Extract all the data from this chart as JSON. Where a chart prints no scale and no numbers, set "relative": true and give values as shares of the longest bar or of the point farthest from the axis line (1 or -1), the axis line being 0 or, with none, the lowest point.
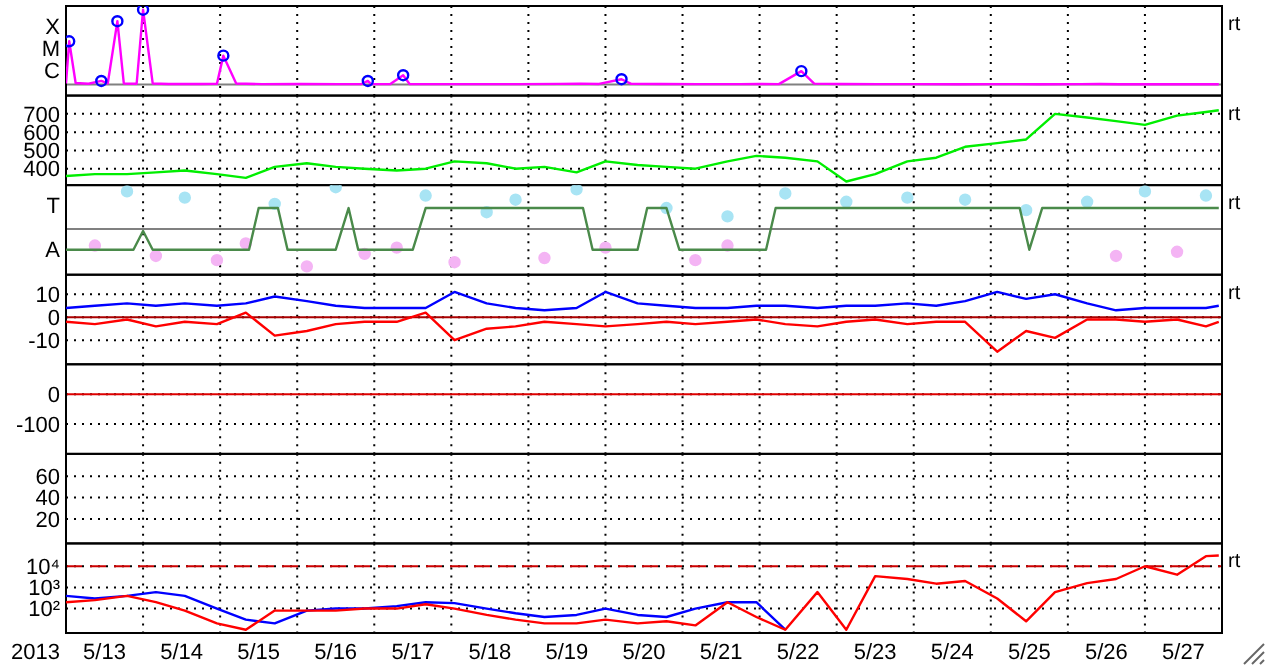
{
  "chart_data": [
    {
      "type": "line",
      "relative": true,
      "grid": true,
      "tick_labels": "y",
      "annotations": [
        "rt",
        "X",
        "M",
        "C"
      ],
      "xlim": [
        "2013-05-13",
        "2013-05-28"
      ],
      "xticks": [
        {
          "value": "2013-05-14T00:00",
          "label": null
        },
        {
          "value": "2013-05-15T00:00",
          "label": null
        },
        {
          "value": "2013-05-16T00:00",
          "label": null
        },
        {
          "value": "2013-05-17T00:00",
          "label": null
        },
        {
          "value": "2013-05-18T00:00",
          "label": null
        },
        {
          "value": "2013-05-19T00:00",
          "label": null
        },
        {
          "value": "2013-05-20T00:00",
          "label": null
        },
        {
          "value": "2013-05-21T00:00",
          "label": null
        },
        {
          "value": "2013-05-22T00:00",
          "label": null
        },
        {
          "value": "2013-05-23T00:00",
          "label": null
        },
        {
          "value": "2013-05-24T00:00",
          "label": null
        },
        {
          "value": "2013-05-25T00:00",
          "label": null
        },
        {
          "value": "2013-05-26T00:00",
          "label": null
        },
        {
          "value": "2013-05-27T00:00",
          "label": null
        }
      ],
      "series": [
        {
          "color": "#ff00ff",
          "x": [
            "2013-05-13T00:00",
            "2013-05-13T01:00",
            "2013-05-13T03:00",
            "2013-05-13T07:00",
            "2013-05-13T11:00",
            "2013-05-13T13:00",
            "2013-05-13T16:00",
            "2013-05-13T18:00",
            "2013-05-13T22:00",
            "2013-05-14T00:00",
            "2013-05-14T03:00",
            "2013-05-14T08:00",
            "2013-05-14T18:00",
            "2013-05-14T23:00",
            "2013-05-15T01:00",
            "2013-05-15T05:00",
            "2013-05-15T13:00",
            "2013-05-16T01:00",
            "2013-05-16T13:00",
            "2013-05-16T20:00",
            "2013-05-16T22:00",
            "2013-05-16T23:00",
            "2013-05-17T05:00",
            "2013-05-17T09:00",
            "2013-05-17T11:00",
            "2013-05-17T20:00",
            "2013-05-18T09:00",
            "2013-05-18T21:00",
            "2013-05-19T10:00",
            "2013-05-19T16:00",
            "2013-05-19T22:00",
            "2013-05-20T05:00",
            "2013-05-20T08:00",
            "2013-05-20T17:00",
            "2013-05-21T05:00",
            "2013-05-21T18:00",
            "2013-05-22T00:00",
            "2013-05-22T06:00",
            "2013-05-22T13:00",
            "2013-05-22T17:00",
            "2013-05-23T01:00",
            "2013-05-23T13:00",
            "2013-05-24T02:00",
            "2013-05-24T14:00",
            "2013-05-25T03:00",
            "2013-05-25T15:00",
            "2013-05-26T04:00",
            "2013-05-26T10:00",
            "2013-05-26T16:00",
            "2013-05-27T05:00",
            "2013-05-27T17:00",
            "2013-05-27T23:00"
          ],
          "values": [
            0.0123,
            0.577,
            0.0177,
            0.0085,
            0.046,
            0.0123,
            0.846,
            0.0123,
            0.0085,
            1,
            0.0123,
            0.0046,
            0.0046,
            0.0069,
            0.385,
            0.0123,
            0.0038,
            0.0046,
            0.0032,
            0.0046,
            0.046,
            0.0038,
            0.0046,
            0.123,
            0.0058,
            0.0032,
            0.0038,
            0.0032,
            0.0069,
            0.01,
            0.0058,
            0.069,
            0.0069,
            0.0046,
            0.0032,
            0.0038,
            0.0058,
            0.0038,
            0.177,
            0.01,
            0.0046,
            0.0032,
            0.0038,
            0.0026,
            0.0032,
            0.0026,
            0.0032,
            0.0046,
            0.0026,
            0.0022,
            0.0018,
            0.0018
          ]
        },
        {
          "type": "scatter",
          "marker": "circle",
          "color": "#0000ff",
          "x": [
            "2013-05-13T01:00",
            "2013-05-13T11:00",
            "2013-05-13T16:00",
            "2013-05-14T00:00",
            "2013-05-15T01:00",
            "2013-05-16T22:00",
            "2013-05-17T09:00",
            "2013-05-20T05:00",
            "2013-05-22T13:00"
          ],
          "values": [
            0.577,
            0.046,
            0.846,
            1,
            0.385,
            0.046,
            0.123,
            0.069,
            0.177
          ]
        }
      ]
    },
    {
      "type": "line",
      "grid": true,
      "tick_labels": "y",
      "annotations": [
        "rt"
      ],
      "xlim": [
        "2013-05-13",
        "2013-05-28"
      ],
      "xticks": [
        {
          "value": "2013-05-14T00:00",
          "label": null
        },
        {
          "value": "2013-05-15T00:00",
          "label": null
        },
        {
          "value": "2013-05-16T00:00",
          "label": null
        },
        {
          "value": "2013-05-17T00:00",
          "label": null
        },
        {
          "value": "2013-05-18T00:00",
          "label": null
        },
        {
          "value": "2013-05-19T00:00",
          "label": null
        },
        {
          "value": "2013-05-20T00:00",
          "label": null
        },
        {
          "value": "2013-05-21T00:00",
          "label": null
        },
        {
          "value": "2013-05-22T00:00",
          "label": null
        },
        {
          "value": "2013-05-23T00:00",
          "label": null
        },
        {
          "value": "2013-05-24T00:00",
          "label": null
        },
        {
          "value": "2013-05-25T00:00",
          "label": null
        },
        {
          "value": "2013-05-26T00:00",
          "label": null
        },
        {
          "value": "2013-05-27T00:00",
          "label": null
        }
      ],
      "ylim": [
        310,
        800
      ],
      "yticks": [
        400,
        500,
        600,
        700
      ],
      "x": [
        "2013-05-13T00:00",
        "2013-05-13T09:00",
        "2013-05-13T19:00",
        "2013-05-14T04:00",
        "2013-05-14T13:00",
        "2013-05-14T23:00",
        "2013-05-15T08:00",
        "2013-05-15T17:00",
        "2013-05-16T03:00",
        "2013-05-16T12:00",
        "2013-05-16T21:00",
        "2013-05-17T07:00",
        "2013-05-17T16:00",
        "2013-05-18T01:00",
        "2013-05-18T11:00",
        "2013-05-18T20:00",
        "2013-05-19T05:00",
        "2013-05-19T15:00",
        "2013-05-20T00:00",
        "2013-05-20T10:00",
        "2013-05-20T19:00",
        "2013-05-21T04:00",
        "2013-05-21T14:00",
        "2013-05-21T23:00",
        "2013-05-22T08:00",
        "2013-05-22T18:00",
        "2013-05-23T03:00",
        "2013-05-23T12:00",
        "2013-05-23T22:00",
        "2013-05-24T07:00",
        "2013-05-24T16:00",
        "2013-05-25T02:00",
        "2013-05-25T11:00",
        "2013-05-25T20:00",
        "2013-05-26T06:00",
        "2013-05-26T15:00",
        "2013-05-27T00:00",
        "2013-05-27T10:00",
        "2013-05-27T19:00",
        "2013-05-27T23:00"
      ],
      "series": [
        {
          "color": "#00ee00",
          "values": [
            360,
            370,
            370,
            380,
            390,
            370,
            350,
            410,
            430,
            410,
            400,
            390,
            400,
            440,
            430,
            400,
            410,
            380,
            440,
            420,
            410,
            400,
            440,
            470,
            460,
            440,
            330,
            370,
            440,
            460,
            520,
            540,
            560,
            700,
            680,
            660,
            640,
            690,
            710,
            720
          ]
        }
      ]
    },
    {
      "type": "line",
      "relative": true,
      "grid": true,
      "tick_labels": "y",
      "annotations": [
        "rt",
        "T",
        "A"
      ],
      "xlim": [
        "2013-05-13",
        "2013-05-28"
      ],
      "xticks": [
        {
          "value": "2013-05-14T00:00",
          "label": null
        },
        {
          "value": "2013-05-15T00:00",
          "label": null
        },
        {
          "value": "2013-05-16T00:00",
          "label": null
        },
        {
          "value": "2013-05-17T00:00",
          "label": null
        },
        {
          "value": "2013-05-18T00:00",
          "label": null
        },
        {
          "value": "2013-05-19T00:00",
          "label": null
        },
        {
          "value": "2013-05-20T00:00",
          "label": null
        },
        {
          "value": "2013-05-21T00:00",
          "label": null
        },
        {
          "value": "2013-05-22T00:00",
          "label": null
        },
        {
          "value": "2013-05-23T00:00",
          "label": null
        },
        {
          "value": "2013-05-24T00:00",
          "label": null
        },
        {
          "value": "2013-05-25T00:00",
          "label": null
        },
        {
          "value": "2013-05-26T00:00",
          "label": null
        },
        {
          "value": "2013-05-27T00:00",
          "label": null
        }
      ],
      "series": [
        {
          "type": "scatter",
          "color": "#a8e4f4",
          "x": [
            "2013-05-13T19:00",
            "2013-05-14T13:00",
            "2013-05-15T17:00",
            "2013-05-16T12:00",
            "2013-05-17T16:00",
            "2013-05-18T11:00",
            "2013-05-18T20:00",
            "2013-05-19T15:00",
            "2013-05-20T19:00",
            "2013-05-21T14:00",
            "2013-05-22T08:00",
            "2013-05-23T03:00",
            "2013-05-23T22:00",
            "2013-05-24T16:00",
            "2013-05-25T11:00",
            "2013-05-26T06:00",
            "2013-05-27T00:00",
            "2013-05-27T19:00"
          ],
          "values": [
            0.9,
            0.75,
            0.6,
            1.0,
            0.8,
            0.4,
            0.7,
            0.95,
            0.5,
            0.3,
            0.85,
            0.65,
            0.75,
            0.7,
            0.45,
            0.65,
            0.9,
            0.8
          ]
        },
        {
          "type": "scatter",
          "color": "#f4b4f4",
          "x": [
            "2013-05-13T09:00",
            "2013-05-14T04:00",
            "2013-05-14T23:00",
            "2013-05-15T08:00",
            "2013-05-16T03:00",
            "2013-05-16T21:00",
            "2013-05-17T07:00",
            "2013-05-18T01:00",
            "2013-05-19T05:00",
            "2013-05-20T00:00",
            "2013-05-21T04:00",
            "2013-05-21T14:00",
            "2013-05-26T15:00",
            "2013-05-27T10:00"
          ],
          "values": [
            -0.4,
            -0.65,
            -0.75,
            -0.35,
            -0.9,
            -0.6,
            -0.45,
            -0.8,
            -0.7,
            -0.45,
            -0.75,
            -0.4,
            -0.65,
            -0.55
          ]
        },
        {
          "color": "#4a8a4a",
          "x": [
            "2013-05-13T00:00",
            "2013-05-13T21:00",
            "2013-05-14T00:00",
            "2013-05-14T03:00",
            "2013-05-15T09:00",
            "2013-05-15T12:00",
            "2013-05-15T18:00",
            "2013-05-15T21:00",
            "2013-05-16T12:00",
            "2013-05-16T16:00",
            "2013-05-16T19:00",
            "2013-05-17T12:00",
            "2013-05-17T16:00",
            "2013-05-19T17:00",
            "2013-05-19T20:00",
            "2013-05-20T10:00",
            "2013-05-20T13:00",
            "2013-05-20T19:00",
            "2013-05-20T23:00",
            "2013-05-22T02:00",
            "2013-05-22T05:00",
            "2013-05-25T09:00",
            "2013-05-25T12:00",
            "2013-05-25T16:00",
            "2013-05-27T23:00"
          ],
          "values": [
            -0.5,
            -0.5,
            -0.05,
            -0.5,
            -0.5,
            0.5,
            0.5,
            -0.5,
            -0.5,
            0.5,
            -0.5,
            -0.5,
            0.5,
            0.5,
            -0.5,
            -0.5,
            0.5,
            0.5,
            -0.5,
            -0.5,
            0.5,
            0.5,
            -0.5,
            0.5,
            0.5
          ]
        }
      ]
    },
    {
      "type": "line",
      "grid": true,
      "tick_labels": "y",
      "annotations": [
        "rt"
      ],
      "xlim": [
        "2013-05-13",
        "2013-05-28"
      ],
      "xticks": [
        {
          "value": "2013-05-14T00:00",
          "label": null
        },
        {
          "value": "2013-05-15T00:00",
          "label": null
        },
        {
          "value": "2013-05-16T00:00",
          "label": null
        },
        {
          "value": "2013-05-17T00:00",
          "label": null
        },
        {
          "value": "2013-05-18T00:00",
          "label": null
        },
        {
          "value": "2013-05-19T00:00",
          "label": null
        },
        {
          "value": "2013-05-20T00:00",
          "label": null
        },
        {
          "value": "2013-05-21T00:00",
          "label": null
        },
        {
          "value": "2013-05-22T00:00",
          "label": null
        },
        {
          "value": "2013-05-23T00:00",
          "label": null
        },
        {
          "value": "2013-05-24T00:00",
          "label": null
        },
        {
          "value": "2013-05-25T00:00",
          "label": null
        },
        {
          "value": "2013-05-26T00:00",
          "label": null
        },
        {
          "value": "2013-05-27T00:00",
          "label": null
        }
      ],
      "ylim": [
        -20.5,
        18.5
      ],
      "yticks": [
        -10,
        0,
        10
      ],
      "ref_lines": [
        {
          "axis": "y",
          "value": 0,
          "color": "#aa0000"
        }
      ],
      "x": [
        "2013-05-13T00:00",
        "2013-05-13T09:00",
        "2013-05-13T19:00",
        "2013-05-14T04:00",
        "2013-05-14T13:00",
        "2013-05-14T23:00",
        "2013-05-15T08:00",
        "2013-05-15T17:00",
        "2013-05-16T03:00",
        "2013-05-16T12:00",
        "2013-05-16T21:00",
        "2013-05-17T07:00",
        "2013-05-17T16:00",
        "2013-05-18T01:00",
        "2013-05-18T11:00",
        "2013-05-18T20:00",
        "2013-05-19T05:00",
        "2013-05-19T15:00",
        "2013-05-20T00:00",
        "2013-05-20T10:00",
        "2013-05-20T19:00",
        "2013-05-21T04:00",
        "2013-05-21T14:00",
        "2013-05-21T23:00",
        "2013-05-22T08:00",
        "2013-05-22T18:00",
        "2013-05-23T03:00",
        "2013-05-23T12:00",
        "2013-05-23T22:00",
        "2013-05-24T07:00",
        "2013-05-24T16:00",
        "2013-05-25T02:00",
        "2013-05-25T11:00",
        "2013-05-25T20:00",
        "2013-05-26T06:00",
        "2013-05-26T15:00",
        "2013-05-27T00:00",
        "2013-05-27T10:00",
        "2013-05-27T19:00",
        "2013-05-27T23:00"
      ],
      "series": [
        {
          "color": "#ff0000",
          "values": [
            -2,
            -3,
            -1,
            -4,
            -2,
            -3,
            2,
            -8,
            -6,
            -3,
            -2,
            -2,
            2,
            -10,
            -5,
            -4,
            -2,
            -3,
            -4,
            -3,
            -2,
            -3,
            -2,
            -1,
            -3,
            -4,
            -2,
            -1,
            -3,
            -2,
            -2,
            -15,
            -6,
            -9,
            -1,
            -1,
            -2,
            -1,
            -4,
            -2
          ]
        },
        {
          "color": "#0000ff",
          "values": [
            4,
            5,
            6,
            5,
            6,
            5,
            6,
            9,
            7,
            5,
            4,
            4,
            4,
            11,
            6,
            4,
            3,
            4,
            11,
            6,
            5,
            4,
            4,
            5,
            5,
            4,
            5,
            5,
            6,
            5,
            7,
            11,
            8,
            10,
            6,
            3,
            4,
            4,
            4,
            5
          ]
        }
      ]
    },
    {
      "type": "line",
      "grid": true,
      "tick_labels": "y",
      "xlim": [
        "2013-05-13",
        "2013-05-28"
      ],
      "xticks": [
        {
          "value": "2013-05-14T00:00",
          "label": null
        },
        {
          "value": "2013-05-15T00:00",
          "label": null
        },
        {
          "value": "2013-05-16T00:00",
          "label": null
        },
        {
          "value": "2013-05-17T00:00",
          "label": null
        },
        {
          "value": "2013-05-18T00:00",
          "label": null
        },
        {
          "value": "2013-05-19T00:00",
          "label": null
        },
        {
          "value": "2013-05-20T00:00",
          "label": null
        },
        {
          "value": "2013-05-21T00:00",
          "label": null
        },
        {
          "value": "2013-05-22T00:00",
          "label": null
        },
        {
          "value": "2013-05-23T00:00",
          "label": null
        },
        {
          "value": "2013-05-24T00:00",
          "label": null
        },
        {
          "value": "2013-05-25T00:00",
          "label": null
        },
        {
          "value": "2013-05-26T00:00",
          "label": null
        },
        {
          "value": "2013-05-27T00:00",
          "label": null
        }
      ],
      "ylim": [
        -200,
        100
      ],
      "yticks": [
        -100,
        0
      ],
      "ref_lines": [
        {
          "axis": "y",
          "value": 0,
          "color": "#dd0000"
        }
      ]
    },
    {
      "type": "line",
      "grid": true,
      "tick_labels": "y",
      "xlim": [
        "2013-05-13",
        "2013-05-28"
      ],
      "xticks": [
        {
          "value": "2013-05-14T00:00",
          "label": null
        },
        {
          "value": "2013-05-15T00:00",
          "label": null
        },
        {
          "value": "2013-05-16T00:00",
          "label": null
        },
        {
          "value": "2013-05-17T00:00",
          "label": null
        },
        {
          "value": "2013-05-18T00:00",
          "label": null
        },
        {
          "value": "2013-05-19T00:00",
          "label": null
        },
        {
          "value": "2013-05-20T00:00",
          "label": null
        },
        {
          "value": "2013-05-21T00:00",
          "label": null
        },
        {
          "value": "2013-05-22T00:00",
          "label": null
        },
        {
          "value": "2013-05-23T00:00",
          "label": null
        },
        {
          "value": "2013-05-24T00:00",
          "label": null
        },
        {
          "value": "2013-05-25T00:00",
          "label": null
        },
        {
          "value": "2013-05-26T00:00",
          "label": null
        },
        {
          "value": "2013-05-27T00:00",
          "label": null
        }
      ],
      "ylim": [
        -3,
        81
      ],
      "yticks": [
        20,
        40,
        60
      ]
    },
    {
      "type": "line",
      "log": true,
      "grid": true,
      "xlabel": "2013",
      "annotations": [
        "rt"
      ],
      "xlim": [
        "2013-05-13",
        "2013-05-28"
      ],
      "xticks": [
        {
          "value": "2013-05-13T12:00",
          "label": "5/13"
        },
        {
          "value": "2013-05-14T00:00",
          "label": null
        },
        {
          "value": "2013-05-14T12:00",
          "label": "5/14"
        },
        {
          "value": "2013-05-15T00:00",
          "label": null
        },
        {
          "value": "2013-05-15T12:00",
          "label": "5/15"
        },
        {
          "value": "2013-05-16T00:00",
          "label": null
        },
        {
          "value": "2013-05-16T12:00",
          "label": "5/16"
        },
        {
          "value": "2013-05-17T00:00",
          "label": null
        },
        {
          "value": "2013-05-17T12:00",
          "label": "5/17"
        },
        {
          "value": "2013-05-18T00:00",
          "label": null
        },
        {
          "value": "2013-05-18T12:00",
          "label": "5/18"
        },
        {
          "value": "2013-05-19T00:00",
          "label": null
        },
        {
          "value": "2013-05-19T12:00",
          "label": "5/19"
        },
        {
          "value": "2013-05-20T00:00",
          "label": null
        },
        {
          "value": "2013-05-20T12:00",
          "label": "5/20"
        },
        {
          "value": "2013-05-21T00:00",
          "label": null
        },
        {
          "value": "2013-05-21T12:00",
          "label": "5/21"
        },
        {
          "value": "2013-05-22T00:00",
          "label": null
        },
        {
          "value": "2013-05-22T12:00",
          "label": "5/22"
        },
        {
          "value": "2013-05-23T00:00",
          "label": null
        },
        {
          "value": "2013-05-23T12:00",
          "label": "5/23"
        },
        {
          "value": "2013-05-24T00:00",
          "label": null
        },
        {
          "value": "2013-05-24T12:00",
          "label": "5/24"
        },
        {
          "value": "2013-05-25T00:00",
          "label": null
        },
        {
          "value": "2013-05-25T12:00",
          "label": "5/25"
        },
        {
          "value": "2013-05-26T00:00",
          "label": null
        },
        {
          "value": "2013-05-26T12:00",
          "label": "5/26"
        },
        {
          "value": "2013-05-27T00:00",
          "label": null
        },
        {
          "value": "2013-05-27T12:00",
          "label": "5/27"
        }
      ],
      "ylim": [
        7,
        120000
      ],
      "yticks": [
        {
          "value": 100,
          "label": "10²"
        },
        {
          "value": 1000,
          "label": "10³"
        },
        {
          "value": 10000,
          "label": "10⁴"
        }
      ],
      "ref_lines": [
        {
          "axis": "y",
          "value": 10000,
          "color": "#cc0000",
          "line_style": "dashed"
        }
      ],
      "x": [
        "2013-05-13T00:00",
        "2013-05-13T09:00",
        "2013-05-13T19:00",
        "2013-05-14T04:00",
        "2013-05-14T13:00",
        "2013-05-14T23:00",
        "2013-05-15T08:00",
        "2013-05-15T17:00",
        "2013-05-16T03:00",
        "2013-05-16T12:00",
        "2013-05-16T21:00",
        "2013-05-17T07:00",
        "2013-05-17T16:00",
        "2013-05-18T01:00",
        "2013-05-18T11:00",
        "2013-05-18T20:00",
        "2013-05-19T05:00",
        "2013-05-19T15:00",
        "2013-05-20T00:00",
        "2013-05-20T10:00",
        "2013-05-20T19:00",
        "2013-05-21T04:00",
        "2013-05-21T14:00",
        "2013-05-21T23:00",
        "2013-05-22T08:00",
        "2013-05-22T18:00",
        "2013-05-23T03:00",
        "2013-05-23T12:00",
        "2013-05-23T22:00",
        "2013-05-24T07:00",
        "2013-05-24T16:00",
        "2013-05-25T02:00",
        "2013-05-25T11:00",
        "2013-05-25T20:00",
        "2013-05-26T06:00",
        "2013-05-26T15:00",
        "2013-05-27T00:00",
        "2013-05-27T10:00",
        "2013-05-27T19:00",
        "2013-05-27T23:00"
      ],
      "series": [
        {
          "color": "#0000ff",
          "values": [
            400,
            300,
            400,
            600,
            400,
            100,
            30,
            20,
            80,
            100,
            100,
            130,
            200,
            180,
            100,
            60,
            40,
            50,
            100,
            50,
            40,
            100,
            200,
            200,
            10,
            null,
            null,
            null,
            null,
            null,
            null,
            null,
            null,
            null,
            null,
            null,
            null,
            null,
            null,
            null
          ]
        },
        {
          "color": "#ff0000",
          "values": [
            200,
            250,
            400,
            200,
            80,
            20,
            10,
            80,
            80,
            80,
            100,
            100,
            160,
            100,
            50,
            30,
            20,
            20,
            30,
            20,
            25,
            16,
            200,
            40,
            10,
            600,
            10,
            3400,
            2500,
            1500,
            2000,
            300,
            25,
            600,
            1600,
            2500,
            10000,
            4000,
            30000,
            32000
          ]
        }
      ]
    }
  ]
}
